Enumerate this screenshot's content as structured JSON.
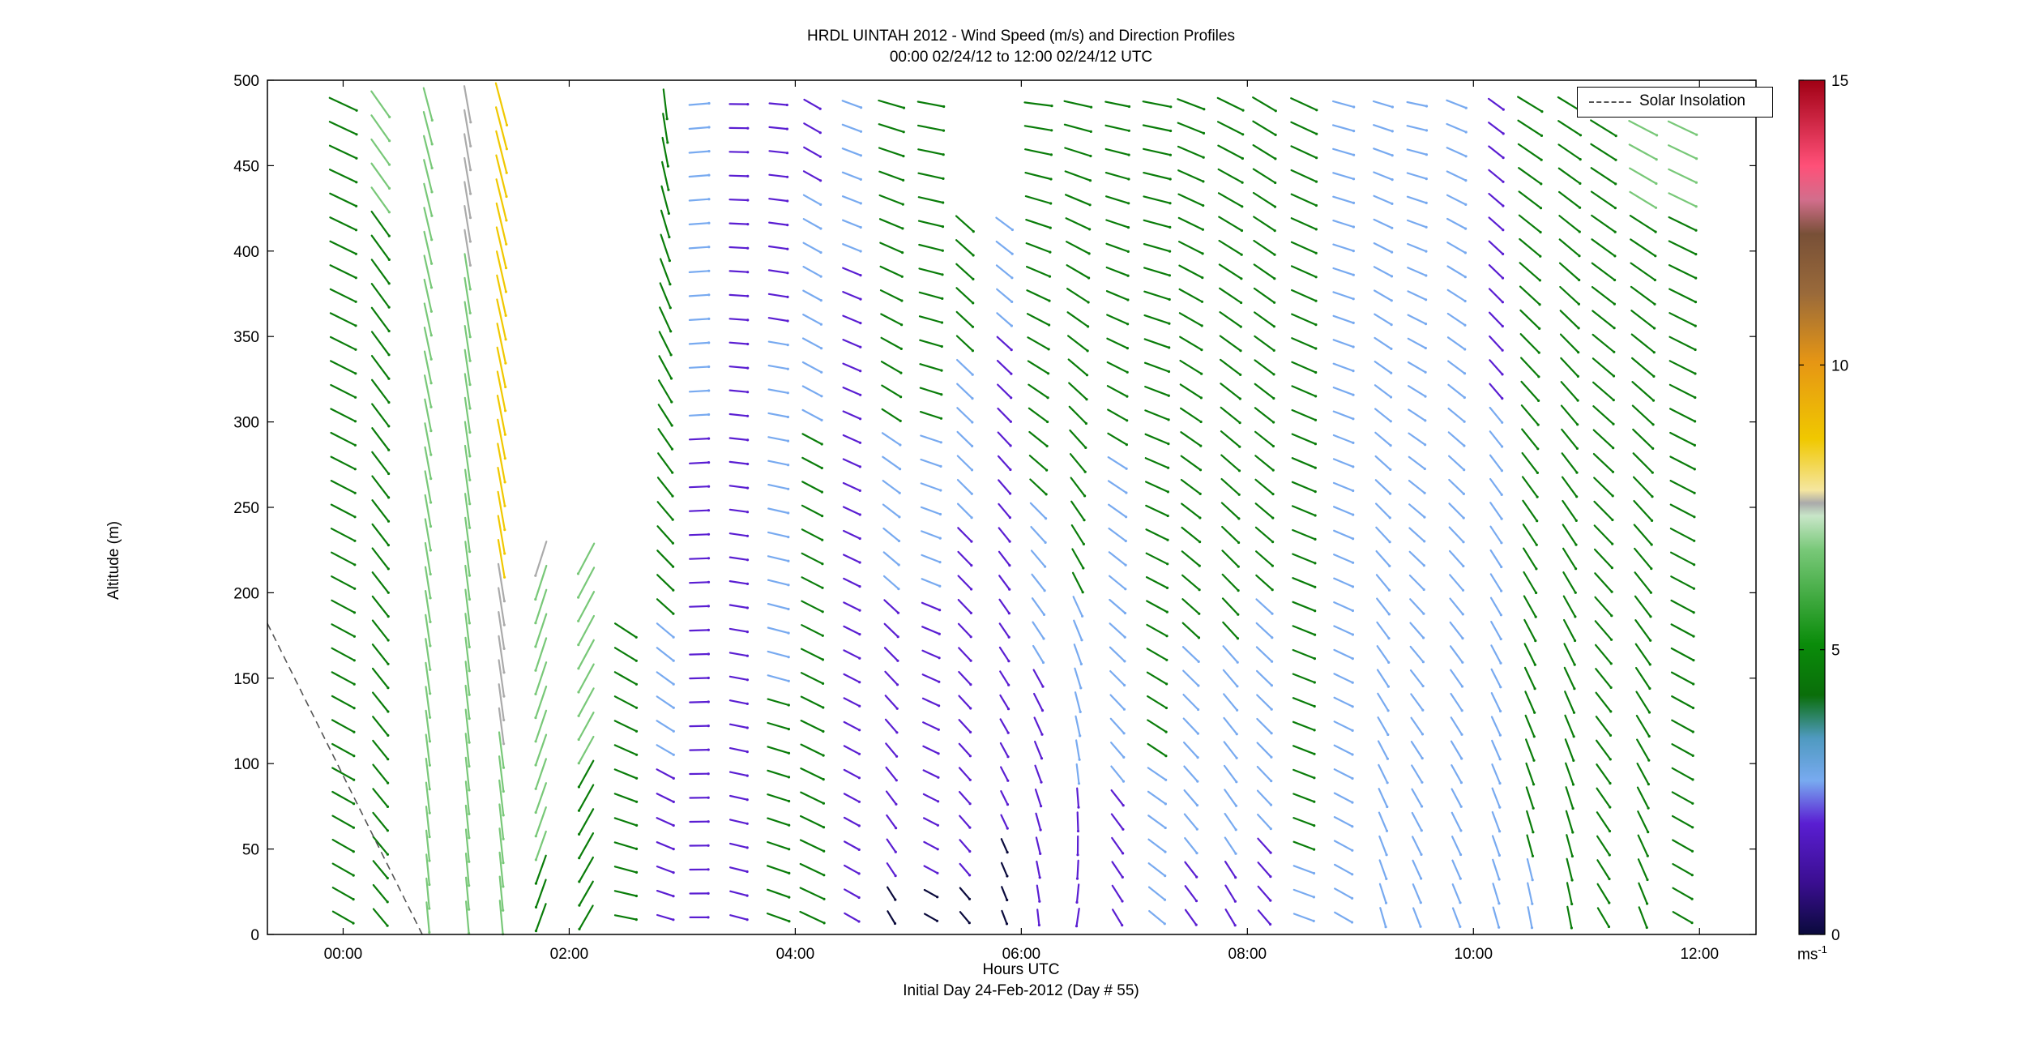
{
  "title_line1": "HRDL UINTAH 2012 - Wind Speed (m/s) and Direction Profiles",
  "title_line2": "00:00 02/24/12 to 12:00 02/24/12  UTC",
  "xlabel_line1": "Hours UTC",
  "xlabel_line2": "Initial Day 24-Feb-2012 (Day # 55)",
  "ylabel": "Altitude (m)",
  "legend": {
    "solar_label": "Solar Insolation"
  },
  "colorbar": {
    "unit": "ms",
    "unit_exp": "-1",
    "ticks": [
      "0",
      "5",
      "10",
      "15"
    ],
    "range": [
      0,
      15
    ]
  },
  "colors": {
    "low": "#0a0a3c",
    "purple": "#5a1ed2",
    "lightblue": "#78aaf0",
    "green": "#0a7d0a",
    "lightgreen": "#78c878",
    "gray": "#aaaaaa",
    "yellow": "#f0c800",
    "orange": "#e69614",
    "brown": "#785037",
    "pink": "#ff5078",
    "red": "#a00014"
  },
  "chart_data": {
    "type": "wind-barb-profile",
    "title": "HRDL UINTAH 2012 - Wind Speed (m/s) and Direction Profiles",
    "xlabel": "Hours UTC",
    "ylabel": "Altitude (m)",
    "xlim": [
      -0.67,
      12.5
    ],
    "ylim": [
      0,
      500
    ],
    "xticks": [
      0,
      2,
      4,
      6,
      8,
      10,
      12
    ],
    "xtick_labels": [
      "00:00",
      "02:00",
      "04:00",
      "06:00",
      "08:00",
      "10:00",
      "12:00"
    ],
    "yticks": [
      0,
      50,
      100,
      150,
      200,
      250,
      300,
      350,
      400,
      450,
      500
    ],
    "ytick_labels": [
      "0",
      "50",
      "100",
      "150",
      "200",
      "250",
      "300",
      "350",
      "400",
      "450",
      "500"
    ],
    "profile_hours": [
      0,
      0.33,
      0.75,
      1.1,
      1.4,
      1.75,
      2.15,
      2.5,
      2.85,
      3.15,
      3.5,
      3.85,
      4.15,
      4.5,
      4.85,
      5.2,
      5.5,
      5.85,
      6.15,
      6.5,
      6.85,
      7.2,
      7.5,
      7.85,
      8.15,
      8.5,
      8.85,
      9.2,
      9.5,
      9.85,
      10.2,
      10.5,
      10.85,
      11.15,
      11.5,
      11.85
    ],
    "altitude_levels": [
      10,
      24,
      38,
      52,
      66,
      80,
      94,
      108,
      122,
      136,
      150,
      164,
      178,
      192,
      206,
      220,
      234,
      248,
      262,
      276,
      290,
      304,
      318,
      332,
      346,
      360,
      374,
      388,
      402,
      416,
      430,
      444,
      458,
      472,
      486
    ],
    "solar_insolation": {
      "x": [
        -0.67,
        0.7
      ],
      "y": [
        182,
        0
      ]
    },
    "profiles": [
      {
        "hour": 0,
        "max_alt": 500,
        "speed_low": 3.5,
        "speed_high": 5.5,
        "dir_low": 300,
        "dir_high": 295
      },
      {
        "hour": 0.33,
        "max_alt": 500,
        "speed_low": 3.0,
        "speed_high": 6.0,
        "dir_low": 320,
        "dir_high": 325
      },
      {
        "hour": 0.75,
        "max_alt": 500,
        "speed_low": 5.5,
        "speed_high": 6.5,
        "dir_low": 355,
        "dir_high": 345
      },
      {
        "hour": 1.1,
        "max_alt": 500,
        "speed_low": 6.0,
        "speed_high": 7.5,
        "dir_low": 355,
        "dir_high": 350
      },
      {
        "hour": 1.4,
        "max_alt": 500,
        "speed_low": 6.5,
        "speed_high": 9.5,
        "dir_low": 355,
        "dir_high": 345
      },
      {
        "hour": 1.75,
        "max_alt": 225,
        "speed_low": 5.0,
        "speed_high": 10.0,
        "dir_low": 20,
        "dir_high": 15
      },
      {
        "hour": 2.15,
        "max_alt": 225,
        "speed_low": 4.5,
        "speed_high": 9.5,
        "dir_low": 30,
        "dir_high": 25
      },
      {
        "hour": 2.5,
        "max_alt": 180,
        "speed_low": 3.0,
        "speed_high": 6.0,
        "dir_low": 280,
        "dir_high": 345
      },
      {
        "hour": 2.85,
        "max_alt": 500,
        "speed_low": 1.5,
        "speed_high": 5.5,
        "dir_low": 285,
        "dir_high": 355
      },
      {
        "hour": 3.15,
        "max_alt": 500,
        "speed_low": 2.0,
        "speed_high": 2.5,
        "dir_low": 270,
        "dir_high": 265
      },
      {
        "hour": 3.5,
        "max_alt": 500,
        "speed_low": 1.8,
        "speed_high": 2.0,
        "dir_low": 285,
        "dir_high": 270
      },
      {
        "hour": 3.85,
        "max_alt": 500,
        "speed_low": 3.5,
        "speed_high": 1.8,
        "dir_low": 290,
        "dir_high": 275
      },
      {
        "hour": 4.15,
        "max_alt": 500,
        "speed_low": 4.5,
        "speed_high": 2.0,
        "dir_low": 295,
        "dir_high": 300
      },
      {
        "hour": 4.5,
        "max_alt": 500,
        "speed_low": 1.5,
        "speed_high": 2.5,
        "dir_low": 300,
        "dir_high": 290
      },
      {
        "hour": 4.85,
        "max_alt": 500,
        "speed_low": 0.8,
        "speed_high": 4.5,
        "dir_low": 330,
        "dir_high": 285
      },
      {
        "hour": 5.2,
        "max_alt": 500,
        "speed_low": 0.8,
        "speed_high": 4.5,
        "dir_low": 300,
        "dir_high": 280
      },
      {
        "hour": 5.5,
        "max_alt": 420,
        "speed_low": 0.8,
        "speed_high": 4.0,
        "dir_low": 320,
        "dir_high": 310
      },
      {
        "hour": 5.85,
        "max_alt": 420,
        "speed_low": 0.7,
        "speed_high": 3.0,
        "dir_low": 340,
        "dir_high": 300
      },
      {
        "hour": 6.15,
        "max_alt": 500,
        "speed_low": 1.2,
        "speed_high": 4.8,
        "dir_low": 355,
        "dir_high": 275
      },
      {
        "hour": 6.5,
        "max_alt": 500,
        "speed_low": 1.8,
        "speed_high": 4.8,
        "dir_low": 10,
        "dir_high": 280
      },
      {
        "hour": 6.85,
        "max_alt": 500,
        "speed_low": 2.0,
        "speed_high": 3.8,
        "dir_low": 330,
        "dir_high": 280
      },
      {
        "hour": 7.2,
        "max_alt": 500,
        "speed_low": 2.5,
        "speed_high": 5.0,
        "dir_low": 310,
        "dir_high": 280
      },
      {
        "hour": 7.5,
        "max_alt": 500,
        "speed_low": 2.0,
        "speed_high": 5.0,
        "dir_low": 325,
        "dir_high": 290
      },
      {
        "hour": 7.85,
        "max_alt": 500,
        "speed_low": 2.0,
        "speed_high": 5.0,
        "dir_low": 330,
        "dir_high": 295
      },
      {
        "hour": 8.15,
        "max_alt": 500,
        "speed_low": 2.0,
        "speed_high": 4.5,
        "dir_low": 320,
        "dir_high": 300
      },
      {
        "hour": 8.5,
        "max_alt": 500,
        "speed_low": 2.8,
        "speed_high": 5.0,
        "dir_low": 290,
        "dir_high": 295
      },
      {
        "hour": 8.85,
        "max_alt": 500,
        "speed_low": 2.5,
        "speed_high": 3.0,
        "dir_low": 300,
        "dir_high": 285
      },
      {
        "hour": 9.2,
        "max_alt": 500,
        "speed_low": 2.5,
        "speed_high": 2.5,
        "dir_low": 345,
        "dir_high": 285
      },
      {
        "hour": 9.5,
        "max_alt": 500,
        "speed_low": 2.5,
        "speed_high": 2.5,
        "dir_low": 340,
        "dir_high": 280
      },
      {
        "hour": 9.85,
        "max_alt": 500,
        "speed_low": 2.5,
        "speed_high": 2.8,
        "dir_low": 340,
        "dir_high": 290
      },
      {
        "hour": 10.2,
        "max_alt": 500,
        "speed_low": 2.8,
        "speed_high": 2.0,
        "dir_low": 345,
        "dir_high": 305
      },
      {
        "hour": 10.5,
        "max_alt": 500,
        "speed_low": 2.8,
        "speed_high": 5.0,
        "dir_low": 350,
        "dir_high": 300
      },
      {
        "hour": 10.85,
        "max_alt": 500,
        "speed_low": 3.0,
        "speed_high": 4.5,
        "dir_low": 350,
        "dir_high": 300
      },
      {
        "hour": 11.15,
        "max_alt": 490,
        "speed_low": 3.0,
        "speed_high": 5.5,
        "dir_low": 330,
        "dir_high": 300
      },
      {
        "hour": 11.5,
        "max_alt": 490,
        "speed_low": 3.0,
        "speed_high": 6.0,
        "dir_low": 340,
        "dir_high": 295
      },
      {
        "hour": 11.85,
        "max_alt": 475,
        "speed_low": 3.0,
        "speed_high": 6.0,
        "dir_low": 300,
        "dir_high": 295
      }
    ]
  }
}
